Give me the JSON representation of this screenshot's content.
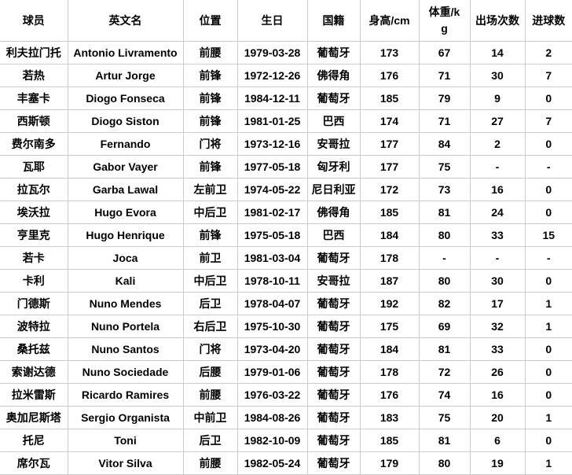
{
  "colors": {
    "background": "#ffffff",
    "border": "#cccccc",
    "text": "#000000"
  },
  "table": {
    "columns": [
      "球员",
      "英文名",
      "位置",
      "生日",
      "国籍",
      "身高/cm",
      "体重/kg",
      "出场次数",
      "进球数"
    ],
    "rows": [
      [
        "利夫拉门托",
        "Antonio Livramento",
        "前腰",
        "1979-03-28",
        "葡萄牙",
        "173",
        "67",
        "14",
        "2"
      ],
      [
        "若热",
        "Artur Jorge",
        "前锋",
        "1972-12-26",
        "佛得角",
        "176",
        "71",
        "30",
        "7"
      ],
      [
        "丰塞卡",
        "Diogo Fonseca",
        "前锋",
        "1984-12-11",
        "葡萄牙",
        "185",
        "79",
        "9",
        "0"
      ],
      [
        "西斯顿",
        "Diogo Siston",
        "前锋",
        "1981-01-25",
        "巴西",
        "174",
        "71",
        "27",
        "7"
      ],
      [
        "费尔南多",
        "Fernando",
        "门将",
        "1973-12-16",
        "安哥拉",
        "177",
        "84",
        "2",
        "0"
      ],
      [
        "瓦耶",
        "Gabor Vayer",
        "前锋",
        "1977-05-18",
        "匈牙利",
        "177",
        "75",
        "-",
        "-"
      ],
      [
        "拉瓦尔",
        "Garba Lawal",
        "左前卫",
        "1974-05-22",
        "尼日利亚",
        "172",
        "73",
        "16",
        "0"
      ],
      [
        "埃沃拉",
        "Hugo Evora",
        "中后卫",
        "1981-02-17",
        "佛得角",
        "185",
        "81",
        "24",
        "0"
      ],
      [
        "亨里克",
        "Hugo Henrique",
        "前锋",
        "1975-05-18",
        "巴西",
        "184",
        "80",
        "33",
        "15"
      ],
      [
        "若卡",
        "Joca",
        "前卫",
        "1981-03-04",
        "葡萄牙",
        "178",
        "-",
        "-",
        "-"
      ],
      [
        "卡利",
        "Kali",
        "中后卫",
        "1978-10-11",
        "安哥拉",
        "187",
        "80",
        "30",
        "0"
      ],
      [
        "门德斯",
        "Nuno Mendes",
        "后卫",
        "1978-04-07",
        "葡萄牙",
        "192",
        "82",
        "17",
        "1"
      ],
      [
        "波特拉",
        "Nuno Portela",
        "右后卫",
        "1975-10-30",
        "葡萄牙",
        "175",
        "69",
        "32",
        "1"
      ],
      [
        "桑托兹",
        "Nuno Santos",
        "门将",
        "1973-04-20",
        "葡萄牙",
        "184",
        "81",
        "33",
        "0"
      ],
      [
        "索谢达德",
        "Nuno Sociedade",
        "后腰",
        "1979-01-06",
        "葡萄牙",
        "178",
        "72",
        "26",
        "0"
      ],
      [
        "拉米雷斯",
        "Ricardo Ramires",
        "前腰",
        "1976-03-22",
        "葡萄牙",
        "176",
        "74",
        "16",
        "0"
      ],
      [
        "奥加尼斯塔",
        "Sergio Organista",
        "中前卫",
        "1984-08-26",
        "葡萄牙",
        "183",
        "75",
        "20",
        "1"
      ],
      [
        "托尼",
        "Toni",
        "后卫",
        "1982-10-09",
        "葡萄牙",
        "185",
        "81",
        "6",
        "0"
      ],
      [
        "席尔瓦",
        "Vitor Silva",
        "前腰",
        "1982-05-24",
        "葡萄牙",
        "179",
        "80",
        "19",
        "1"
      ]
    ]
  }
}
